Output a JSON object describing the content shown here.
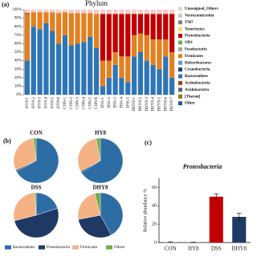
{
  "chart_data": [
    {
      "type": "bar",
      "stacked": true,
      "panel": "(a)",
      "title": "Phylum",
      "categories": [
        "HY8-1",
        "HY8-2",
        "HY8-3",
        "HY8-4",
        "HY8-5",
        "HY8-6",
        "CON-1",
        "CON-2",
        "CON-3",
        "CON-4",
        "CON-5",
        "CON-6",
        "DSS-1",
        "DSS-2",
        "DSS-3",
        "DSS-4",
        "DSS-5",
        "DHY8-1",
        "DHY8-2",
        "DHY8-3",
        "DHY8-4",
        "DHY8-5",
        "DHY8-6",
        "DHY8-7"
      ],
      "series": [
        {
          "name": "Other",
          "color": "#255e91",
          "values": [
            0,
            0,
            0,
            0,
            0,
            0,
            0,
            0,
            0,
            0,
            0,
            0,
            0,
            0,
            0,
            0,
            0,
            0,
            0,
            0,
            0,
            0,
            0,
            0
          ]
        },
        {
          "name": "[Thermi]",
          "color": "#997300",
          "values": [
            0,
            0,
            0,
            0,
            0,
            0,
            0,
            0,
            0,
            0,
            0,
            0,
            0,
            0,
            0,
            0,
            0,
            0,
            0,
            0,
            0,
            0,
            0,
            0
          ]
        },
        {
          "name": "Acidobacteria",
          "color": "#636363",
          "values": [
            0,
            0,
            0,
            0,
            0,
            0,
            0,
            0,
            0,
            0,
            0,
            0,
            0,
            0,
            0,
            0,
            0,
            0,
            0,
            0,
            0,
            0,
            0,
            0
          ]
        },
        {
          "name": "Actinobacteria",
          "color": "#9e480e",
          "values": [
            0,
            0,
            0,
            0,
            0,
            0,
            0,
            0,
            0,
            0,
            0,
            0,
            0,
            0,
            0,
            0,
            0,
            0,
            0,
            0,
            0,
            0,
            0,
            0
          ]
        },
        {
          "name": "Bacteroidetes",
          "color": "#2e75b6",
          "values": [
            40,
            80,
            77,
            84,
            75,
            60,
            70,
            58,
            60,
            62,
            68,
            55,
            10,
            20,
            35,
            20,
            15,
            45,
            50,
            40,
            35,
            30,
            45,
            20
          ]
        },
        {
          "name": "Cyanobacteria",
          "color": "#264478",
          "values": [
            0,
            0,
            0,
            0,
            0,
            0,
            0,
            0,
            0,
            0,
            0,
            0,
            0,
            0,
            0,
            0,
            0,
            0,
            0,
            0,
            0,
            0,
            0,
            0
          ]
        },
        {
          "name": "Deferribacteres",
          "color": "#5b9bd5",
          "values": [
            0,
            0,
            0,
            0,
            0,
            0,
            0,
            0,
            0,
            0,
            0,
            0,
            0,
            0,
            0,
            0,
            0,
            0,
            0,
            0,
            0,
            0,
            0,
            0
          ]
        },
        {
          "name": "Firmicutes",
          "color": "#e3801f",
          "values": [
            55,
            17,
            20,
            13,
            22,
            36,
            27,
            38,
            36,
            34,
            28,
            40,
            30,
            20,
            15,
            25,
            30,
            25,
            22,
            30,
            30,
            35,
            20,
            30
          ]
        },
        {
          "name": "Fusobacteria",
          "color": "#a5a5a5",
          "values": [
            0,
            0,
            0,
            0,
            0,
            0,
            0,
            0,
            0,
            0,
            0,
            0,
            0,
            0,
            0,
            0,
            0,
            0,
            0,
            0,
            0,
            0,
            0,
            0
          ]
        },
        {
          "name": "OD1",
          "color": "#70ad47",
          "values": [
            0,
            0,
            0,
            0,
            0,
            0,
            0,
            0,
            0,
            0,
            0,
            0,
            0,
            0,
            0,
            0,
            0,
            0,
            0,
            0,
            0,
            0,
            0,
            0
          ]
        },
        {
          "name": "Proteobacteria",
          "color": "#c00000",
          "values": [
            1,
            0,
            0,
            0,
            0,
            0,
            0,
            0,
            0,
            0,
            0,
            0,
            55,
            55,
            45,
            50,
            50,
            25,
            23,
            25,
            30,
            30,
            30,
            45
          ]
        },
        {
          "name": "Tenericutes",
          "color": "#ffd966",
          "values": [
            0,
            0,
            0,
            0,
            0,
            0,
            0,
            0,
            0,
            0,
            0,
            0,
            0,
            0,
            0,
            0,
            0,
            0,
            0,
            0,
            0,
            0,
            0,
            0
          ]
        },
        {
          "name": "TM7",
          "color": "#7f7f7f",
          "values": [
            0,
            0,
            0,
            0,
            0,
            0,
            0,
            0,
            0,
            0,
            0,
            0,
            0,
            0,
            0,
            0,
            0,
            0,
            0,
            0,
            0,
            0,
            0,
            0
          ]
        },
        {
          "name": "Verrucomicrobia",
          "color": "#c9c9c9",
          "values": [
            0,
            0,
            0,
            0,
            0,
            0,
            0,
            0,
            0,
            0,
            0,
            0,
            0,
            0,
            0,
            0,
            0,
            0,
            0,
            0,
            0,
            0,
            0,
            0
          ]
        },
        {
          "name": "Unassigned_Others",
          "color": "#f4cccc",
          "values": [
            4,
            3,
            3,
            3,
            3,
            4,
            3,
            4,
            4,
            4,
            4,
            5,
            5,
            5,
            5,
            5,
            5,
            5,
            5,
            5,
            5,
            5,
            5,
            5
          ]
        }
      ],
      "ylim": [
        0,
        100
      ],
      "yticks": [
        {
          "value": 0,
          "label": "0%"
        },
        {
          "value": 10,
          "label": "10%"
        },
        {
          "value": 20,
          "label": "20%"
        },
        {
          "value": 30,
          "label": "30%"
        },
        {
          "value": 40,
          "label": "40%"
        },
        {
          "value": 50,
          "label": "50%"
        },
        {
          "value": 60,
          "label": "60%"
        },
        {
          "value": 70,
          "label": "70%"
        },
        {
          "value": 80,
          "label": "80%"
        },
        {
          "value": 90,
          "label": "90%"
        },
        {
          "value": 100,
          "label": "100%"
        }
      ]
    },
    {
      "type": "pie",
      "panel": "(b)",
      "categories": [
        "Bacteroidetes",
        "Proteobacteria",
        "Firmicutes",
        "Others"
      ],
      "colors": [
        "#2e6da4",
        "#1f3864",
        "#f4b183",
        "#70ad47"
      ],
      "pies": [
        {
          "title": "CON",
          "values": [
            67,
            1,
            30,
            2
          ]
        },
        {
          "title": "HY8",
          "values": [
            66,
            1,
            30,
            3
          ]
        },
        {
          "title": "DSS",
          "values": [
            20,
            51,
            28,
            1
          ]
        },
        {
          "title": "DHY8",
          "values": [
            42,
            30,
            24,
            4
          ]
        }
      ]
    },
    {
      "type": "errorbar",
      "panel": "(c)",
      "title": "Proteobacteria",
      "y_label": "Relative abundance %",
      "categories": [
        "CON",
        "HY8",
        "DSS",
        "DHY8"
      ],
      "values": [
        0.5,
        0.3,
        50,
        28
      ],
      "errors": [
        0.3,
        0.2,
        3,
        4
      ],
      "colors": [
        "#7f7f7f",
        "#7f7f7f",
        "#c00000",
        "#1f3864"
      ],
      "ylim": [
        0,
        70
      ],
      "yticks": [
        0,
        20,
        40,
        60
      ]
    }
  ]
}
